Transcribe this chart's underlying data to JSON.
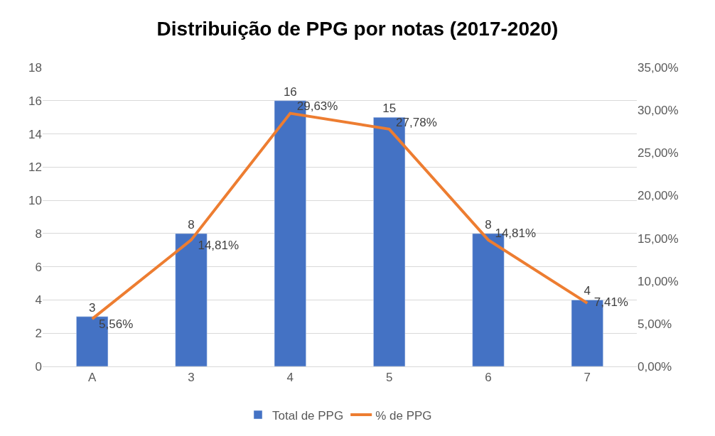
{
  "chart_data": {
    "type": "bar",
    "title": "Distribuição de PPG por notas (2017-2020)",
    "categories": [
      "A",
      "3",
      "4",
      "5",
      "6",
      "7"
    ],
    "series": [
      {
        "name": "Total de PPG",
        "color": "#4472c4",
        "values": [
          3,
          8,
          16,
          15,
          8,
          4
        ],
        "value_labels": [
          "3",
          "8",
          "16",
          "15",
          "8",
          "4"
        ]
      },
      {
        "name": "% de PPG",
        "type": "line",
        "axis": "y2",
        "color": "#ed7d31",
        "values": [
          5.56,
          14.81,
          29.63,
          27.78,
          14.81,
          7.41
        ],
        "value_labels": [
          "5,56%",
          "14,81%",
          "29,63%",
          "27,78%",
          "14,81%",
          "7,41%"
        ]
      }
    ],
    "ylim": [
      0,
      18
    ],
    "yticks": [
      0,
      2,
      4,
      6,
      8,
      10,
      12,
      14,
      16,
      18
    ],
    "y2lim": [
      0,
      35
    ],
    "y2ticks": [
      {
        "value": 0,
        "label": "0,00%"
      },
      {
        "value": 5,
        "label": "5,00%"
      },
      {
        "value": 10,
        "label": "10,00%"
      },
      {
        "value": 15,
        "label": "15,00%"
      },
      {
        "value": 20,
        "label": "20,00%"
      },
      {
        "value": 25,
        "label": "25,00%"
      },
      {
        "value": 30,
        "label": "30,00%"
      },
      {
        "value": 35,
        "label": "35,00%"
      }
    ],
    "grid": "y",
    "legend": "bottom",
    "marker": "none",
    "line_style": "solid"
  }
}
